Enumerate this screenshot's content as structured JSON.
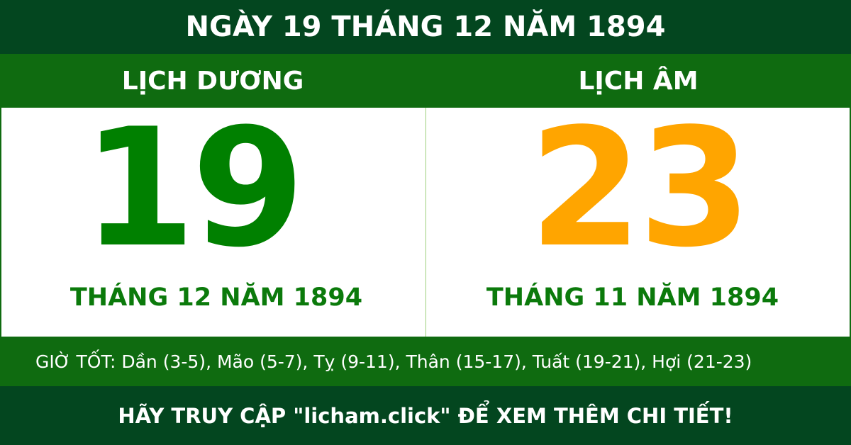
{
  "title": "NGÀY 19 THÁNG 12 NĂM 1894",
  "solar": {
    "label": "LỊCH DƯƠNG",
    "day": "19",
    "month_year": "THÁNG 12 NĂM 1894"
  },
  "lunar": {
    "label": "LỊCH ÂM",
    "day": "23",
    "month_year": "THÁNG 11 NĂM 1894"
  },
  "good_hours": "GIỜ TỐT: Dần (3-5), Mão (5-7), Tỵ (9-11), Thân (15-17), Tuất (19-21), Hợi (21-23)",
  "footer": "HÃY TRUY CẬP \"licham.click\" ĐỂ XEM THÊM CHI TIẾT!",
  "colors": {
    "dark_green": "#03461f",
    "band_green": "#0f6b10",
    "solar_number": "#008000",
    "lunar_number": "#ffa500"
  }
}
